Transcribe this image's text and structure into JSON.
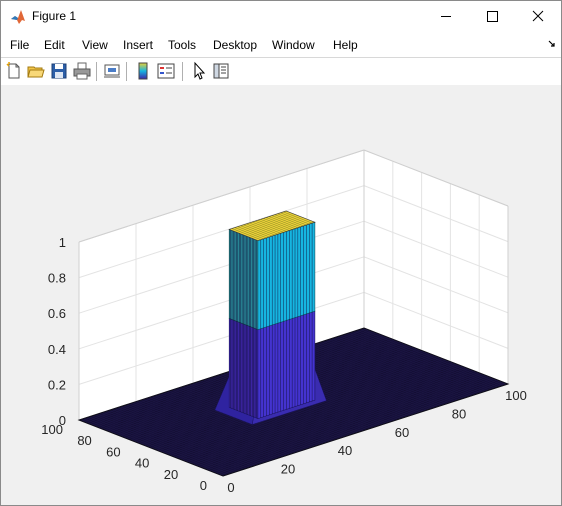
{
  "window": {
    "title": "Figure 1",
    "icon": "matlab-logo-icon",
    "controls": [
      "minimize-icon",
      "maximize-icon",
      "close-icon"
    ]
  },
  "menu": {
    "items": [
      "File",
      "Edit",
      "View",
      "Insert",
      "Tools",
      "Desktop",
      "Window",
      "Help"
    ]
  },
  "toolbar": {
    "icons": [
      "new-figure-icon",
      "open-file-icon",
      "save-icon",
      "print-icon",
      "link-icon",
      "insert-colorbar-icon",
      "insert-legend-icon",
      "edit-plot-icon",
      "property-inspector-icon"
    ]
  },
  "chart_data": {
    "type": "surface",
    "x_ticks": [
      "0",
      "20",
      "40",
      "60",
      "80",
      "100"
    ],
    "y_ticks": [
      "0",
      "20",
      "40",
      "60",
      "80",
      "100"
    ],
    "z_ticks": [
      "0",
      "0.2",
      "0.4",
      "0.6",
      "0.8",
      "1"
    ],
    "xlim": [
      0,
      100
    ],
    "ylim": [
      0,
      100
    ],
    "zlim": [
      0,
      1
    ],
    "grid": true,
    "surface": {
      "shape": "square pulse",
      "base_value": 0,
      "plateau_value": 1,
      "plateau_x": [
        35,
        55
      ],
      "plateau_y": [
        45,
        65
      ]
    },
    "colormap": [
      "#3e26a8",
      "#2a7ef0",
      "#16b5e0",
      "#5ec962",
      "#e8d038"
    ]
  }
}
